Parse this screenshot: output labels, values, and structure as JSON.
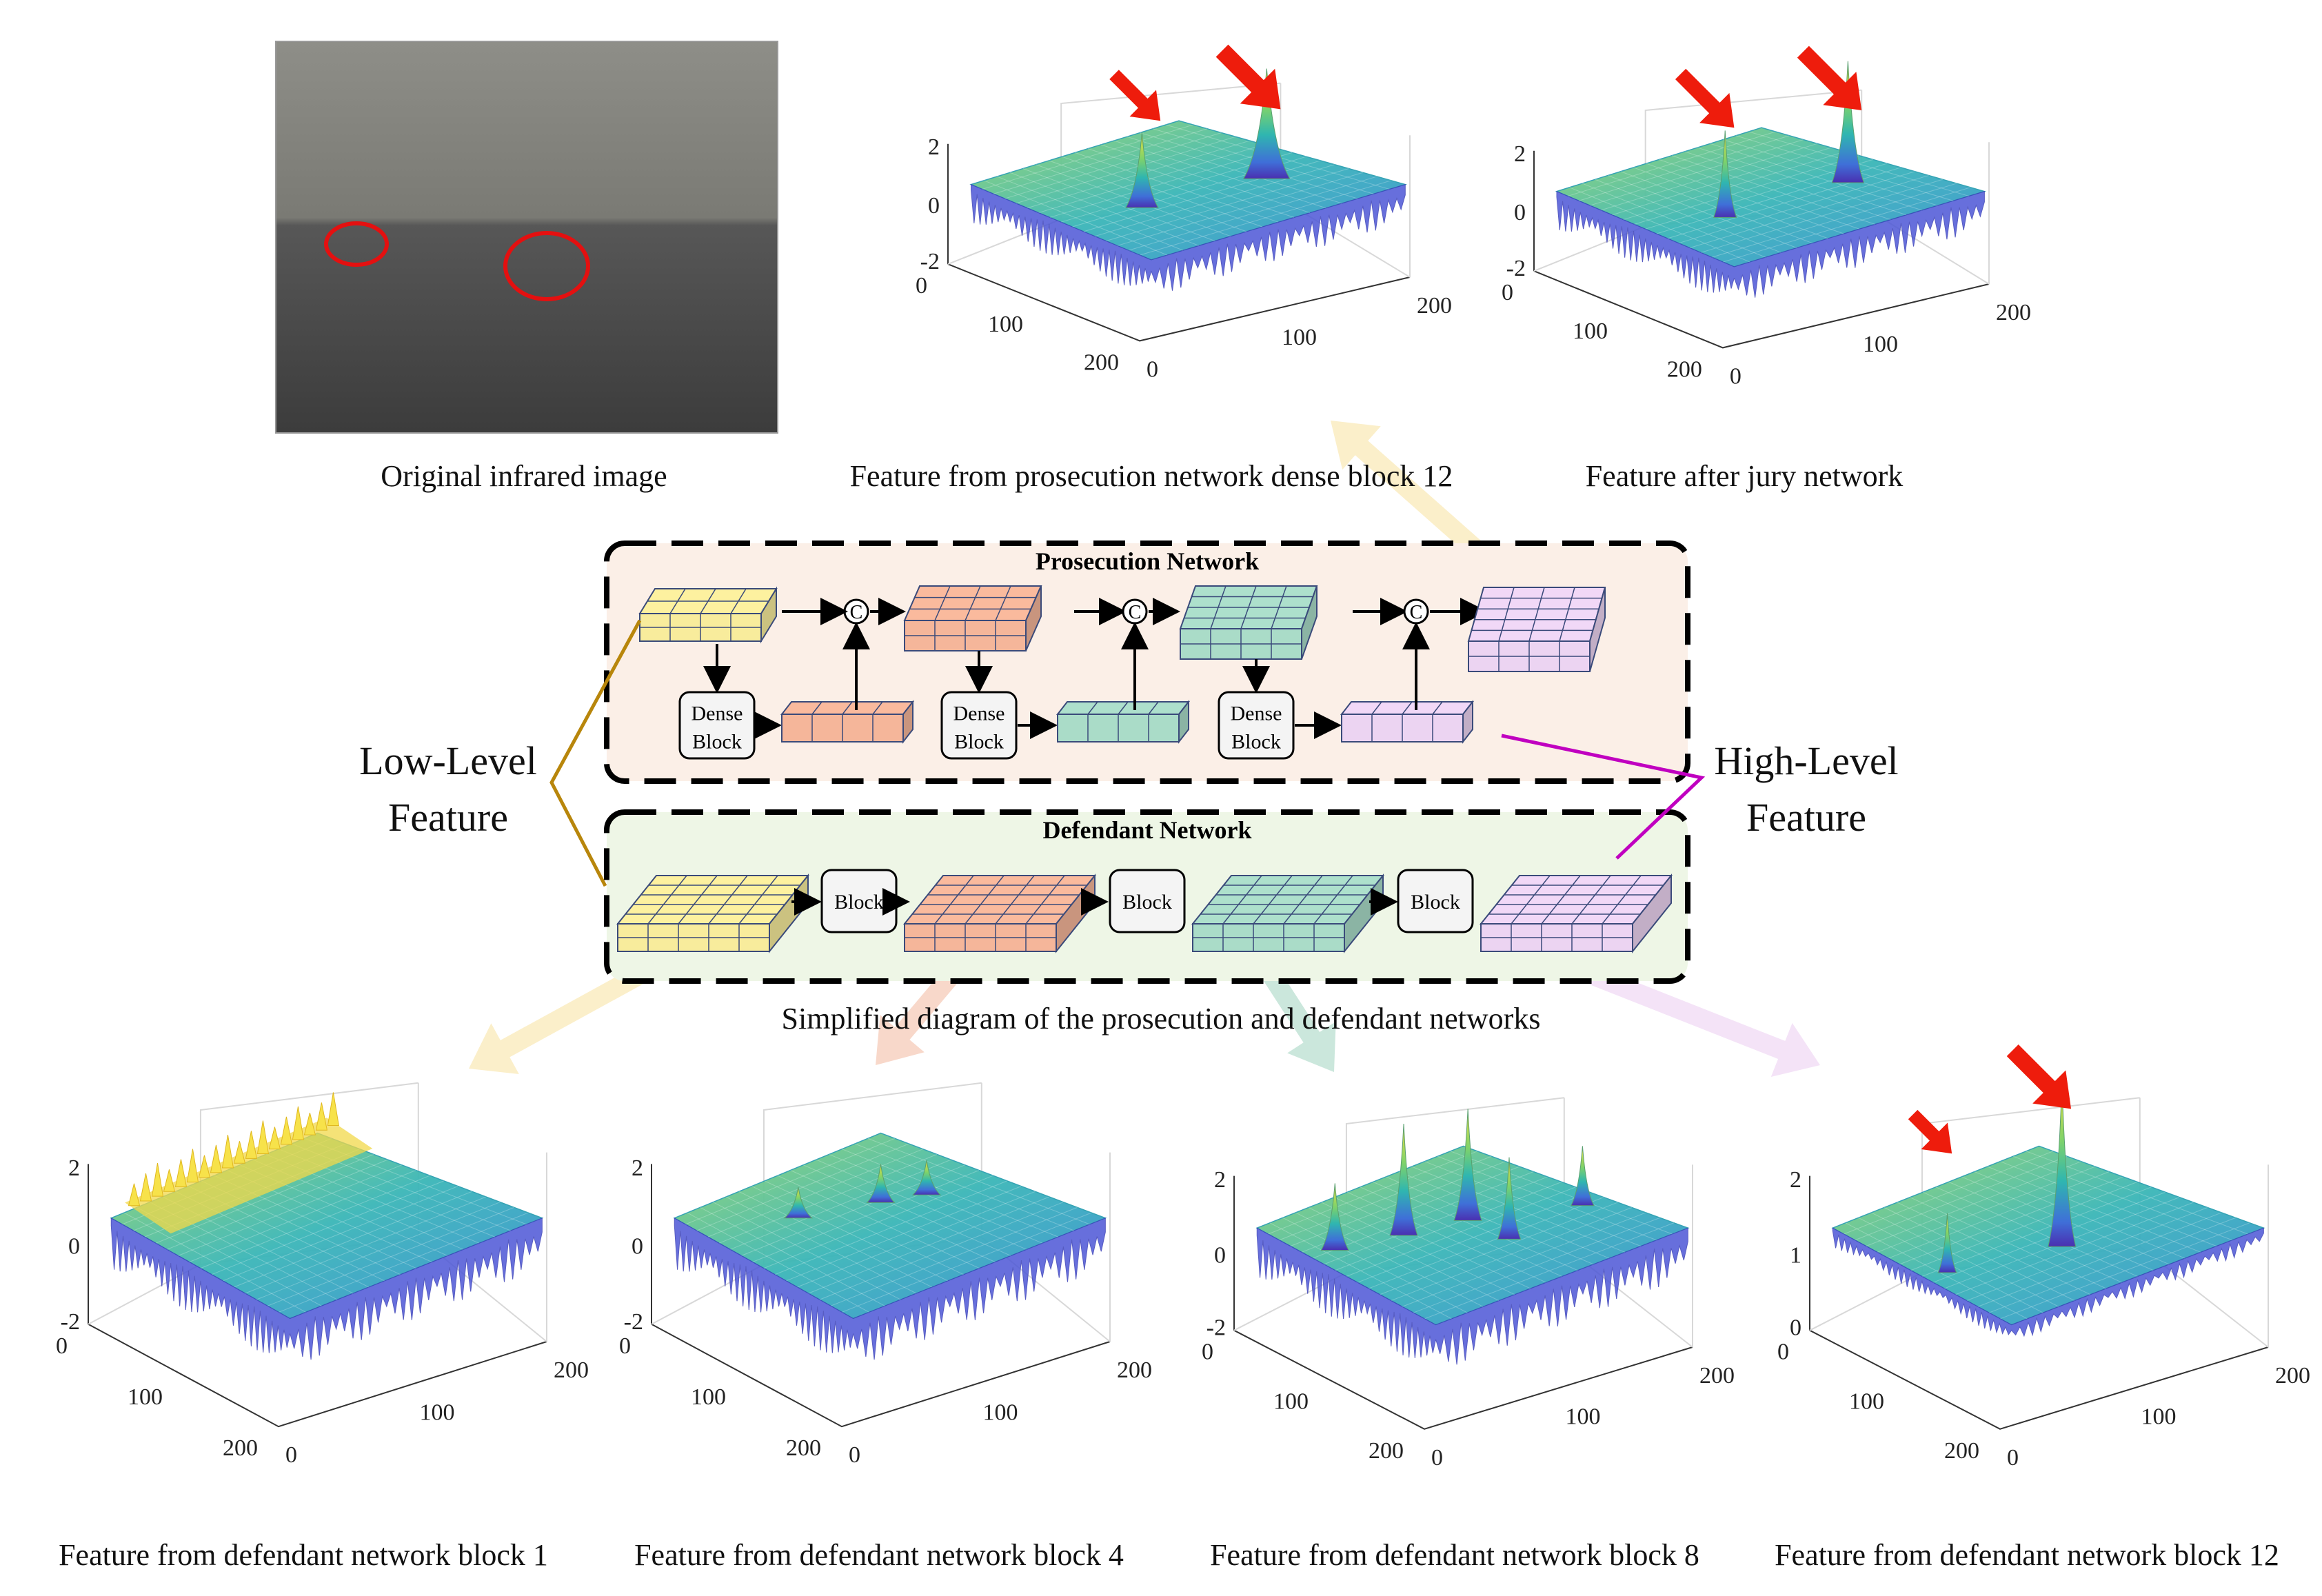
{
  "top_row": {
    "original": {
      "caption": "Original infrared image"
    },
    "prosecution_block12": {
      "caption": "Feature from prosecution network dense block 12",
      "z_ticks": [
        "2",
        "0",
        "-2"
      ],
      "y_ticks": [
        "0",
        "100",
        "200"
      ],
      "x_ticks": [
        "0",
        "100",
        "200"
      ]
    },
    "jury": {
      "caption": "Feature after jury network",
      "z_ticks": [
        "2",
        "0",
        "-2"
      ],
      "y_ticks": [
        "0",
        "100",
        "200"
      ],
      "x_ticks": [
        "0",
        "100",
        "200"
      ]
    }
  },
  "diagram": {
    "prosecution_title": "Prosecution Network",
    "defendant_title": "Defendant Network",
    "dense_block_line1": "Dense",
    "dense_block_line2": "Block",
    "block_label": "Block",
    "concat_symbol": "C",
    "low_level_line1": "Low-Level",
    "low_level_line2": "Feature",
    "high_level_line1": "High-Level",
    "high_level_line2": "Feature",
    "caption": "Simplified diagram of the prosecution and defendant networks",
    "colors": {
      "yellow": "#f8ec9c",
      "salmon": "#f5b69a",
      "teal": "#aadcc8",
      "lavender": "#ecd4f2",
      "prosecution_bg": "#fbefe7",
      "defendant_bg": "#eef6e6",
      "low_line": "#b8860b",
      "high_line": "#c000c0"
    }
  },
  "bottom_row": [
    {
      "caption": "Feature from defendant network block 1",
      "z_ticks": [
        "2",
        "0",
        "-2"
      ],
      "y_ticks": [
        "0",
        "100",
        "200"
      ],
      "x_ticks": [
        "0",
        "100",
        "200"
      ]
    },
    {
      "caption": "Feature from defendant network block 4",
      "z_ticks": [
        "2",
        "0",
        "-2"
      ],
      "y_ticks": [
        "0",
        "100",
        "200"
      ],
      "x_ticks": [
        "0",
        "100",
        "200"
      ]
    },
    {
      "caption": "Feature from defendant network block 8",
      "z_ticks": [
        "2",
        "0",
        "-2"
      ],
      "y_ticks": [
        "0",
        "100",
        "200"
      ],
      "x_ticks": [
        "0",
        "100",
        "200"
      ]
    },
    {
      "caption": "Feature from defendant network block 12",
      "z_ticks": [
        "2",
        "1",
        "0"
      ],
      "y_ticks": [
        "0",
        "100",
        "200"
      ],
      "x_ticks": [
        "0",
        "100",
        "200"
      ]
    }
  ]
}
